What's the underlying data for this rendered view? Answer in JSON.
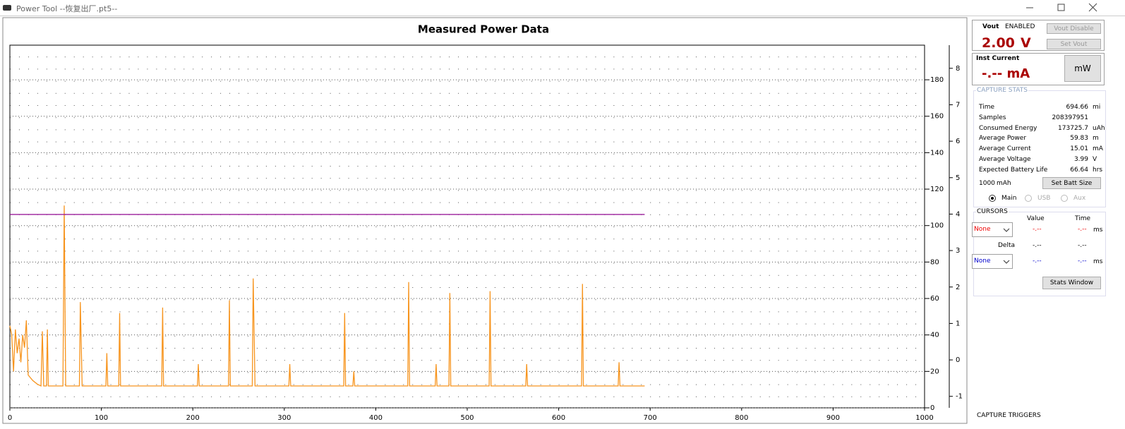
{
  "window": {
    "title": "Power Tool --恢复出厂.pt5--"
  },
  "chart_data": {
    "type": "line",
    "title": "Measured Power Data",
    "x": [
      0,
      2,
      4,
      6,
      8,
      10,
      12,
      14,
      16,
      18,
      20,
      25,
      30,
      34,
      35.5,
      37,
      40,
      41,
      42,
      58,
      59.4,
      61,
      76,
      77,
      79,
      105,
      106,
      107,
      119,
      120,
      121,
      166,
      167,
      168,
      205,
      206,
      207,
      239,
      240,
      241,
      265,
      266,
      268,
      305,
      306,
      307,
      365,
      366,
      367,
      375,
      376,
      377,
      435,
      436,
      437,
      465,
      466,
      467,
      480,
      481,
      482,
      524,
      525,
      526,
      564,
      565,
      566,
      625,
      626,
      627,
      665,
      666,
      667,
      694
    ],
    "series": [
      {
        "color": "#f7941d",
        "values": [
          45,
          40,
          20,
          43,
          30,
          38,
          25,
          40,
          33,
          48,
          18,
          15,
          13,
          12,
          42,
          12,
          12,
          43,
          12,
          12,
          111,
          12,
          12,
          58,
          12,
          12,
          30,
          12,
          12,
          52,
          12,
          12,
          55,
          12,
          12,
          24,
          12,
          12,
          59,
          12,
          12,
          71,
          12,
          12,
          24,
          12,
          12,
          52,
          12,
          12,
          20,
          12,
          12,
          69,
          12,
          12,
          24,
          12,
          12,
          63,
          12,
          12,
          64,
          12,
          12,
          24,
          12,
          12,
          68,
          12,
          12,
          25,
          12,
          12
        ]
      },
      {
        "color": "#9b1f9b",
        "axis": "y2",
        "x": [
          0,
          694
        ],
        "values": [
          3.99,
          3.99
        ]
      }
    ],
    "xlim": [
      0,
      1000
    ],
    "xticks": [
      0,
      100,
      200,
      300,
      400,
      500,
      600,
      700,
      800,
      900,
      1000
    ],
    "ylim": [
      0,
      199
    ],
    "yticks": [
      0,
      20,
      40,
      60,
      80,
      100,
      120,
      140,
      160,
      180
    ],
    "y2lim": [
      -1.315,
      8.635
    ],
    "y2ticks": [
      -1,
      0,
      1,
      2,
      3,
      4,
      5,
      6,
      7,
      8
    ],
    "grid": true
  },
  "panel": {
    "vout": {
      "label": "Vout",
      "status": "ENABLED",
      "value": "2.00",
      "unit": "V",
      "buttons": [
        "Vout Disable",
        "Set Vout"
      ]
    },
    "inst": {
      "label": "Inst Current",
      "value": "-.-- mA",
      "button": "mW"
    },
    "stats": {
      "title": "CAPTURE STATS",
      "rows": [
        {
          "label": "Time",
          "value": "694.66",
          "unit": "mi"
        },
        {
          "label": "Samples",
          "value": "208397951"
        },
        {
          "label": "Consumed Energy",
          "value": "173725.7",
          "unit": "uAh"
        },
        {
          "label": "Average Power",
          "value": "59.83",
          "unit": "m"
        },
        {
          "label": "Average Current",
          "value": "15.01",
          "unit": "mA"
        },
        {
          "label": "Average Voltage",
          "value": "3.99",
          "unit": "V"
        },
        {
          "label": "Expected Battery Life",
          "value": "66.64",
          "unit": "hrs"
        }
      ]
    },
    "battery": {
      "value": "1000",
      "unit": "mAh",
      "button": "Set Batt Size"
    },
    "sources": [
      "Main",
      "USB",
      "Aux"
    ],
    "cursors": {
      "title": "CURSORS",
      "headers": [
        "Value",
        "Time"
      ],
      "row1": {
        "select": "None",
        "value": "-.--",
        "time": "-.--",
        "unit": "ms"
      },
      "delta": {
        "label": "Delta",
        "value": "-.--",
        "time": "-.--"
      },
      "row2": {
        "select": "None",
        "value": "-.--",
        "time": "-.--",
        "unit": "ms"
      }
    },
    "stats_button": "Stats Window",
    "triggers": "CAPTURE TRIGGERS"
  }
}
